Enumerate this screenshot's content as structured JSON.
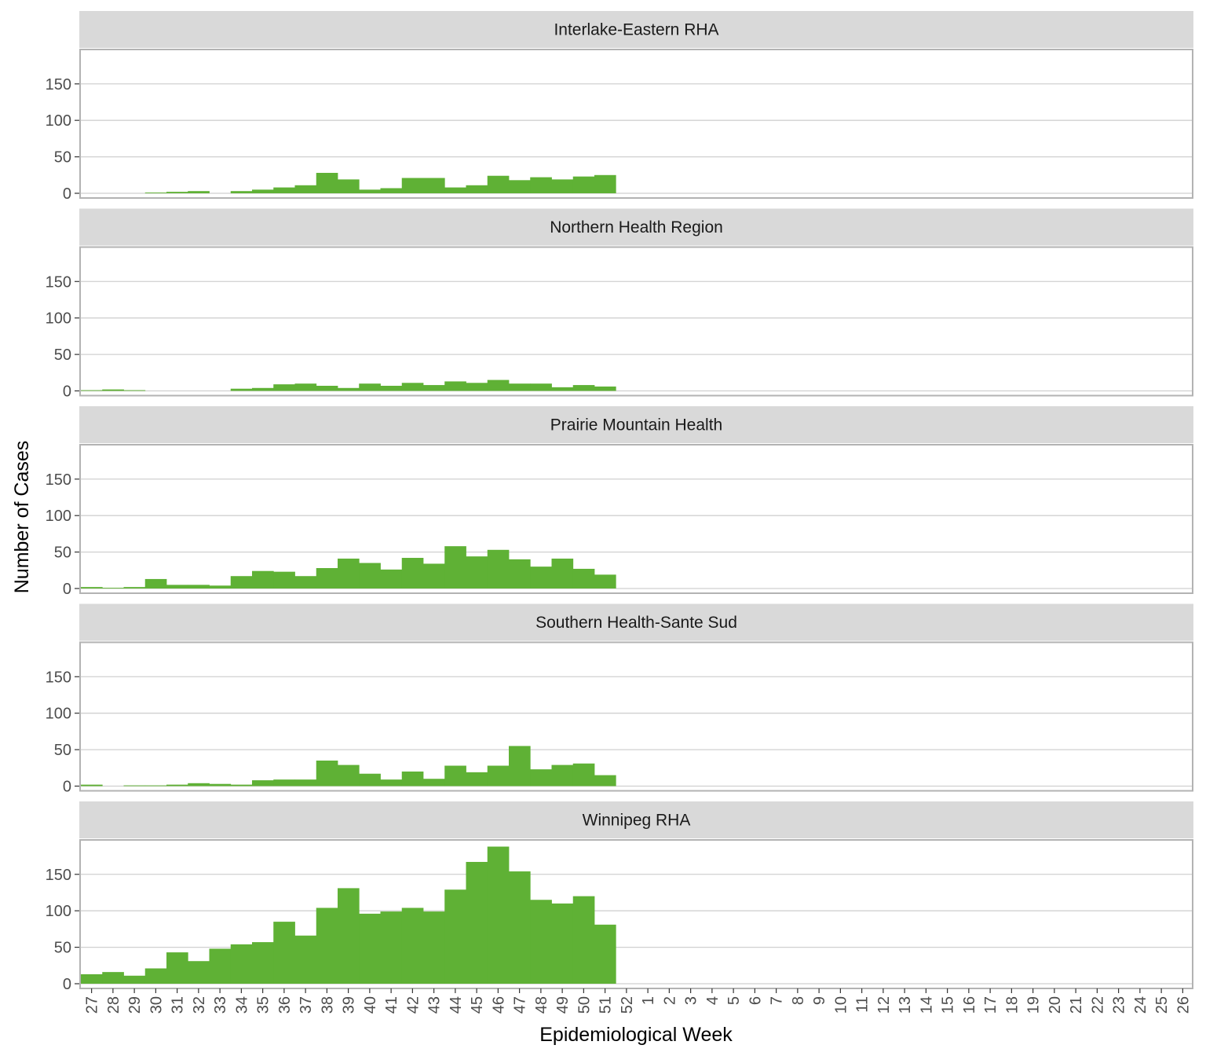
{
  "chart_data": {
    "type": "bar",
    "xlabel": "Epidemiological Week",
    "ylabel": "Number of Cases",
    "ylim": [
      0,
      195
    ],
    "yticks": [
      0,
      50,
      100,
      150
    ],
    "grid": true,
    "bar_color": "#5FB135",
    "strip_color": "#D9D9D9",
    "categories": [
      "27",
      "28",
      "29",
      "30",
      "31",
      "32",
      "33",
      "34",
      "35",
      "36",
      "37",
      "38",
      "39",
      "40",
      "41",
      "42",
      "43",
      "44",
      "45",
      "46",
      "47",
      "48",
      "49",
      "50",
      "51",
      "52",
      "1",
      "2",
      "3",
      "4",
      "5",
      "6",
      "7",
      "8",
      "9",
      "10",
      "11",
      "12",
      "13",
      "14",
      "15",
      "16",
      "17",
      "18",
      "19",
      "20",
      "21",
      "22",
      "23",
      "24",
      "25",
      "26"
    ],
    "panels": [
      {
        "name": "Interlake-Eastern RHA",
        "values": [
          0,
          0,
          0,
          1,
          2,
          3,
          0,
          3,
          5,
          8,
          11,
          28,
          19,
          5,
          7,
          21,
          21,
          8,
          11,
          24,
          18,
          22,
          19,
          23,
          25
        ]
      },
      {
        "name": "Northern Health Region",
        "values": [
          1,
          2,
          1,
          0,
          0,
          0,
          0,
          3,
          4,
          9,
          10,
          7,
          4,
          10,
          7,
          11,
          8,
          13,
          11,
          15,
          10,
          10,
          5,
          8,
          6
        ]
      },
      {
        "name": "Prairie Mountain Health",
        "values": [
          2,
          1,
          2,
          13,
          5,
          5,
          4,
          17,
          24,
          23,
          17,
          28,
          41,
          35,
          26,
          42,
          34,
          58,
          44,
          53,
          40,
          30,
          41,
          27,
          19
        ]
      },
      {
        "name": "Southern Health-Sante Sud",
        "values": [
          2,
          0,
          1,
          1,
          2,
          4,
          3,
          2,
          8,
          9,
          9,
          35,
          29,
          17,
          9,
          20,
          10,
          28,
          19,
          28,
          55,
          23,
          29,
          31,
          15
        ]
      },
      {
        "name": "Winnipeg RHA",
        "values": [
          13,
          16,
          11,
          21,
          43,
          31,
          48,
          54,
          57,
          85,
          66,
          104,
          131,
          96,
          99,
          104,
          99,
          129,
          167,
          188,
          154,
          115,
          110,
          120,
          81
        ]
      }
    ]
  }
}
